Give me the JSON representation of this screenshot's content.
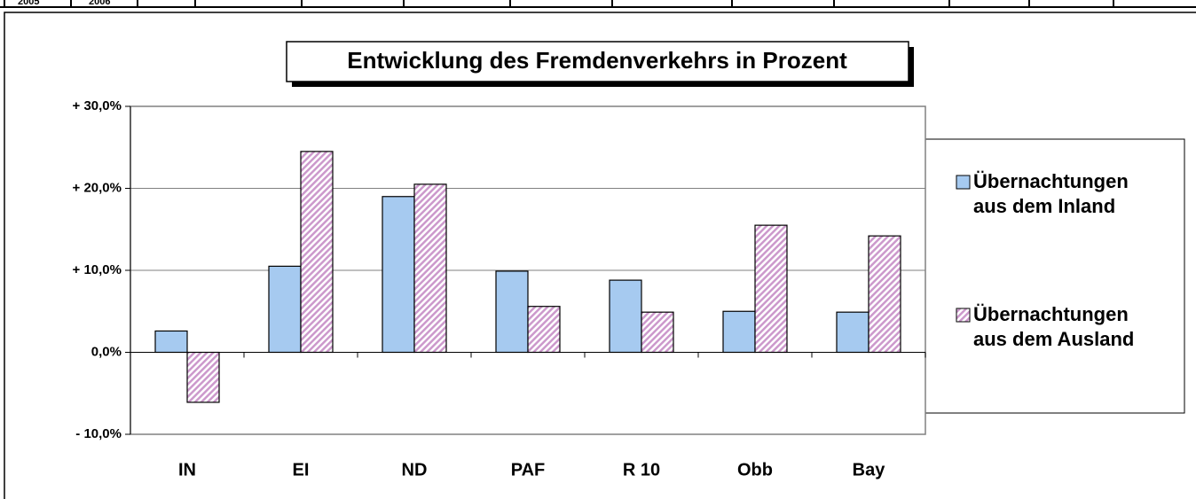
{
  "table_fragment": [
    "2005",
    "2006"
  ],
  "chart_data": {
    "type": "bar",
    "title": "Entwicklung des Fremdenverkehrs in Prozent",
    "categories": [
      "IN",
      "EI",
      "ND",
      "PAF",
      "R 10",
      "Obb",
      "Bay"
    ],
    "series": [
      {
        "name": "Übernachtungen aus dem Inland",
        "color": "#a6caf0",
        "values": [
          2.6,
          10.5,
          19.0,
          9.9,
          8.8,
          5.0,
          4.9
        ]
      },
      {
        "name": "Übernachtungen aus dem Ausland",
        "color": "#cc99cc",
        "values": [
          -6.1,
          24.5,
          20.5,
          5.6,
          4.9,
          15.5,
          14.2
        ]
      }
    ],
    "ylim": [
      -10,
      30
    ],
    "yticks": [
      {
        "value": -10,
        "label": "- 10,0%"
      },
      {
        "value": 0,
        "label": "0,0%"
      },
      {
        "value": 10,
        "label": "+ 10,0%"
      },
      {
        "value": 20,
        "label": "+ 20,0%"
      },
      {
        "value": 30,
        "label": "+ 30,0%"
      }
    ],
    "grid": true,
    "legend": "right"
  }
}
